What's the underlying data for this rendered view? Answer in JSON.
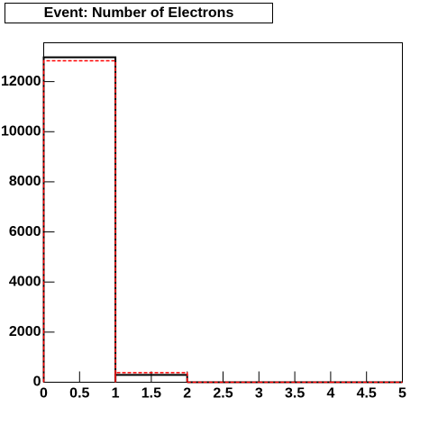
{
  "chart_data": {
    "type": "histogram",
    "title": "Event: Number of Electrons",
    "bins": [
      0,
      1,
      2,
      3,
      4,
      5
    ],
    "series": [
      {
        "color": "#000000",
        "values": [
          12970,
          290,
          0,
          0,
          0
        ]
      },
      {
        "color": "#ff0000",
        "values": [
          12830,
          380,
          0,
          0,
          0
        ]
      }
    ],
    "xlim": [
      0,
      5
    ],
    "xticks": [
      0,
      0.5,
      1,
      1.5,
      2,
      2.5,
      3,
      3.5,
      4,
      4.5,
      5
    ],
    "ylim": [
      0,
      13550
    ],
    "yticks": [
      0,
      2000,
      4000,
      6000,
      8000,
      10000,
      12000
    ]
  }
}
